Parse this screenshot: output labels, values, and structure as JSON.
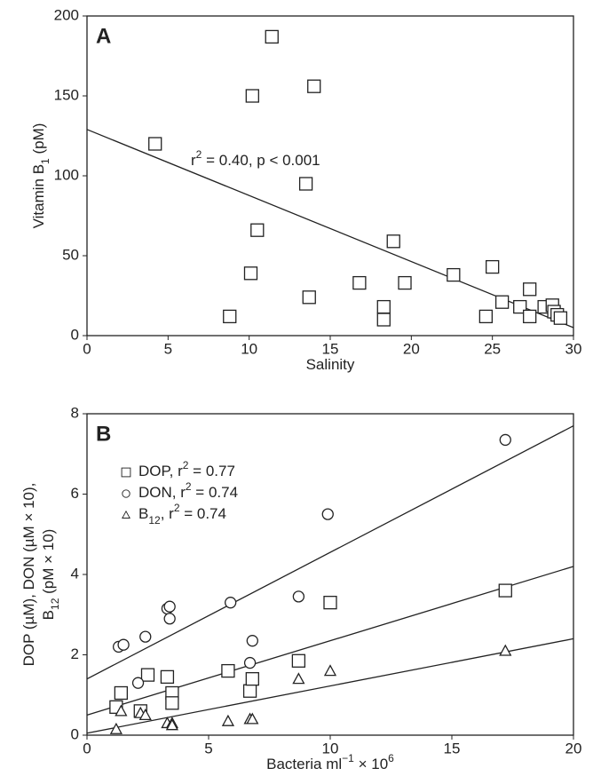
{
  "chart_data": [
    {
      "type": "scatter",
      "panel": "A",
      "xlabel": [
        {
          "text": "Salinity"
        }
      ],
      "ylabel": [
        [
          {
            "text": "Vitamin B"
          },
          {
            "text": "1",
            "shift": "sub"
          },
          {
            "text": " (pM)"
          }
        ]
      ],
      "annotation": [
        {
          "text": "r"
        },
        {
          "text": "2",
          "shift": "super"
        },
        {
          "text": " = 0.40, p < 0.001"
        }
      ],
      "xlim": [
        0,
        30
      ],
      "ylim": [
        0,
        200
      ],
      "xticks": [
        0,
        5,
        10,
        15,
        20,
        25,
        30
      ],
      "yticks": [
        0,
        50,
        100,
        150,
        200
      ],
      "series": [
        {
          "marker": "square",
          "color": "#222",
          "x": [
            4.2,
            10.2,
            11.4,
            14.0,
            13.5,
            8.8,
            10.1,
            10.5,
            13.7,
            18.9,
            19.6,
            16.8,
            18.3,
            18.3,
            22.6,
            25.0,
            24.6,
            25.6,
            26.7,
            27.3,
            27.3,
            28.2,
            28.7,
            28.8,
            29.0,
            29.2
          ],
          "values": [
            120,
            150,
            187,
            156,
            95,
            12,
            39,
            66,
            24,
            59,
            33,
            33,
            18,
            10,
            38,
            43,
            12,
            21,
            18,
            29,
            12,
            18,
            19,
            15,
            13,
            11
          ],
          "fit": [
            129,
            5
          ]
        }
      ]
    },
    {
      "type": "scatter",
      "panel": "B",
      "xlabel": [
        {
          "text": "Bacteria ml"
        },
        {
          "text": "−1",
          "shift": "super"
        },
        {
          "text": " × 10"
        },
        {
          "text": "6",
          "shift": "super"
        }
      ],
      "ylabel": [
        [
          {
            "text": "DOP (µM), DON (µM × 10),"
          }
        ],
        [
          {
            "text": "B"
          },
          {
            "text": "12",
            "shift": "sub"
          },
          {
            "text": " (pM × 10)"
          }
        ]
      ],
      "xlim": [
        0,
        20
      ],
      "ylim": [
        0,
        8
      ],
      "xticks": [
        0,
        5,
        10,
        15,
        20
      ],
      "yticks": [
        0,
        2,
        4,
        6,
        8
      ],
      "series": [
        {
          "name": [
            {
              "text": "DOP, r"
            },
            {
              "text": "2",
              "shift": "super"
            },
            {
              "text": " = 0.77"
            }
          ],
          "marker": "square",
          "color": "#222",
          "x": [
            1.2,
            1.4,
            2.5,
            2.2,
            3.3,
            3.5,
            3.5,
            5.8,
            6.7,
            6.8,
            8.7,
            10.0,
            17.2
          ],
          "values": [
            0.7,
            1.05,
            1.5,
            0.6,
            1.45,
            1.05,
            0.8,
            1.6,
            1.1,
            1.4,
            1.85,
            3.3,
            3.6
          ],
          "fit": [
            0.5,
            4.2
          ]
        },
        {
          "name": [
            {
              "text": "DON, r"
            },
            {
              "text": "2",
              "shift": "super"
            },
            {
              "text": " = 0.74"
            }
          ],
          "marker": "circle",
          "color": "#222",
          "x": [
            1.3,
            1.5,
            2.4,
            2.1,
            3.3,
            3.4,
            3.4,
            5.9,
            6.7,
            6.8,
            8.7,
            9.9,
            17.2
          ],
          "values": [
            2.2,
            2.25,
            2.45,
            1.3,
            3.15,
            3.2,
            2.9,
            3.3,
            1.8,
            2.35,
            3.45,
            5.5,
            7.35
          ],
          "fit": [
            1.4,
            7.7
          ]
        },
        {
          "name": [
            {
              "text": "B"
            },
            {
              "text": "12",
              "shift": "sub"
            },
            {
              "text": ", r"
            },
            {
              "text": "2",
              "shift": "super"
            },
            {
              "text": " = 0.74"
            }
          ],
          "marker": "triangle",
          "color": "#222",
          "x": [
            1.2,
            1.4,
            2.2,
            2.4,
            3.3,
            3.5,
            3.5,
            5.8,
            6.7,
            6.8,
            8.7,
            10.0,
            17.2
          ],
          "values": [
            0.15,
            0.6,
            0.55,
            0.5,
            0.3,
            0.3,
            0.25,
            0.35,
            0.4,
            0.4,
            1.4,
            1.6,
            2.1
          ],
          "fit": [
            0.05,
            2.4
          ]
        }
      ]
    }
  ]
}
